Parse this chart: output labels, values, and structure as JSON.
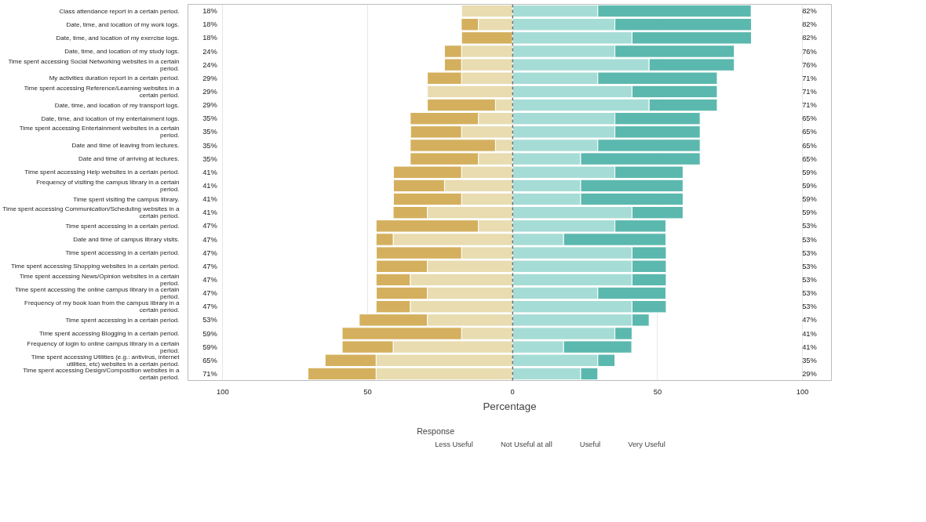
{
  "chart_data": {
    "type": "bar",
    "orientation": "horizontal",
    "stacked": true,
    "xlabel": "Percentage",
    "legend_title": "Response",
    "legend": "bottom",
    "grid": "x",
    "categories": [
      "Class attendance report in a certain period.",
      "Date, time, and location of my work logs.",
      "Date, time, and location of my exercise logs.",
      "Date, time, and location of my study logs.",
      "Time spent accessing Social Networking websites in a certain period.",
      "My activities duration report in a certain period.",
      "Time spent accessing Reference/Learning websites in a certain period.",
      "Date, time, and location of my transport logs.",
      "Date, time, and location of my entertainment logs.",
      "Time spent accessing Entertainment websites in a certain period.",
      "Date and time of leaving from lectures.",
      "Date and time of arriving at lectures.",
      "Time spent accessing Help websites in a certain period.",
      "Frequency of visiting the campus library in a certain period.",
      "Time spent visiting the campus library.",
      "Time spent accessing Communication/Scheduling websites in a certain period.",
      "Time spent accessing in a certain period.",
      "Date and time of campus library visits.",
      "Time spent accessing in a certain period. ",
      "Time spent accessing Shopping websites in a certain period.",
      "Time spent accessing News/Opinion websites in a certain period.",
      "Time spent accessing the online campus library in a certain period.",
      "Frequency of my book loan from the campus library in a certain period.",
      "Time spent accessing in a certain period.  ",
      "Time spent accessing Blogging in a certain period.",
      "Frequency of login to online campus library in a certain period.",
      "Time spent accessing Utilities (e.g.: antivirus, internet utilities, etc) websites in a certain period.",
      "Time spent accessing Design/Composition websites in a certain period."
    ],
    "series": [
      {
        "name": "Less Useful",
        "color": "#e8dcb0",
        "values": [
          -17.6,
          -11.8,
          0,
          -17.6,
          -17.6,
          -17.6,
          -29.4,
          -5.9,
          -11.8,
          -17.6,
          -5.9,
          -11.8,
          -17.6,
          -23.5,
          -17.6,
          -29.4,
          -11.8,
          -41.2,
          -17.6,
          -29.4,
          -35.3,
          -29.4,
          -35.3,
          -29.4,
          -17.6,
          -41.2,
          -47.1,
          -47.1
        ]
      },
      {
        "name": "Not Useful at all",
        "color": "#d4b05e",
        "values": [
          0,
          -5.9,
          -17.6,
          -5.9,
          -5.9,
          -11.8,
          0,
          -23.5,
          -23.5,
          -17.6,
          -29.4,
          -23.5,
          -23.5,
          -17.6,
          -23.5,
          -11.8,
          -35.3,
          -5.9,
          -29.4,
          -17.6,
          -11.8,
          -17.6,
          -11.8,
          -23.5,
          -41.2,
          -17.6,
          -17.6,
          -23.5
        ]
      },
      {
        "name": "Useful",
        "color": "#a6dcd6",
        "values": [
          29.4,
          35.3,
          41.2,
          35.3,
          47.1,
          29.4,
          41.2,
          47.1,
          35.3,
          35.3,
          29.4,
          23.5,
          35.3,
          23.5,
          23.5,
          41.2,
          35.3,
          17.6,
          41.2,
          41.2,
          41.2,
          29.4,
          41.2,
          41.2,
          35.3,
          17.6,
          29.4,
          23.5
        ]
      },
      {
        "name": "Very Useful",
        "color": "#5bb8ae",
        "values": [
          52.9,
          47.1,
          41.2,
          41.2,
          29.4,
          41.2,
          29.4,
          23.5,
          29.4,
          29.4,
          35.3,
          41.2,
          23.5,
          35.3,
          35.3,
          17.6,
          17.6,
          35.3,
          11.8,
          11.8,
          11.8,
          23.5,
          11.8,
          5.9,
          5.9,
          23.5,
          5.9,
          5.9
        ]
      }
    ],
    "xlim": [
      -112,
      110
    ],
    "xticks": [
      {
        "value": -100,
        "label": "100"
      },
      {
        "value": -50,
        "label": "50"
      },
      0,
      50,
      100
    ],
    "ref_lines": [
      {
        "axis": "x",
        "value": 0,
        "line_style": "dashed",
        "color": "#333333"
      }
    ],
    "annotations": [
      "18%",
      "82%",
      "18%",
      "82%",
      "18%",
      "82%",
      "24%",
      "76%",
      "24%",
      "76%",
      "29%",
      "71%",
      "29%",
      "71%",
      "29%",
      "71%",
      "35%",
      "65%",
      "35%",
      "65%",
      "35%",
      "65%",
      "35%",
      "65%",
      "41%",
      "59%",
      "41%",
      "59%",
      "41%",
      "59%",
      "41%",
      "59%",
      "47%",
      "53%",
      "47%",
      "53%",
      "47%",
      "53%",
      "47%",
      "53%",
      "47%",
      "53%",
      "47%",
      "53%",
      "47%",
      "53%",
      "53%",
      "47%",
      "59%",
      "41%",
      "59%",
      "41%",
      "65%",
      "35%",
      "71%",
      "29%"
    ]
  }
}
